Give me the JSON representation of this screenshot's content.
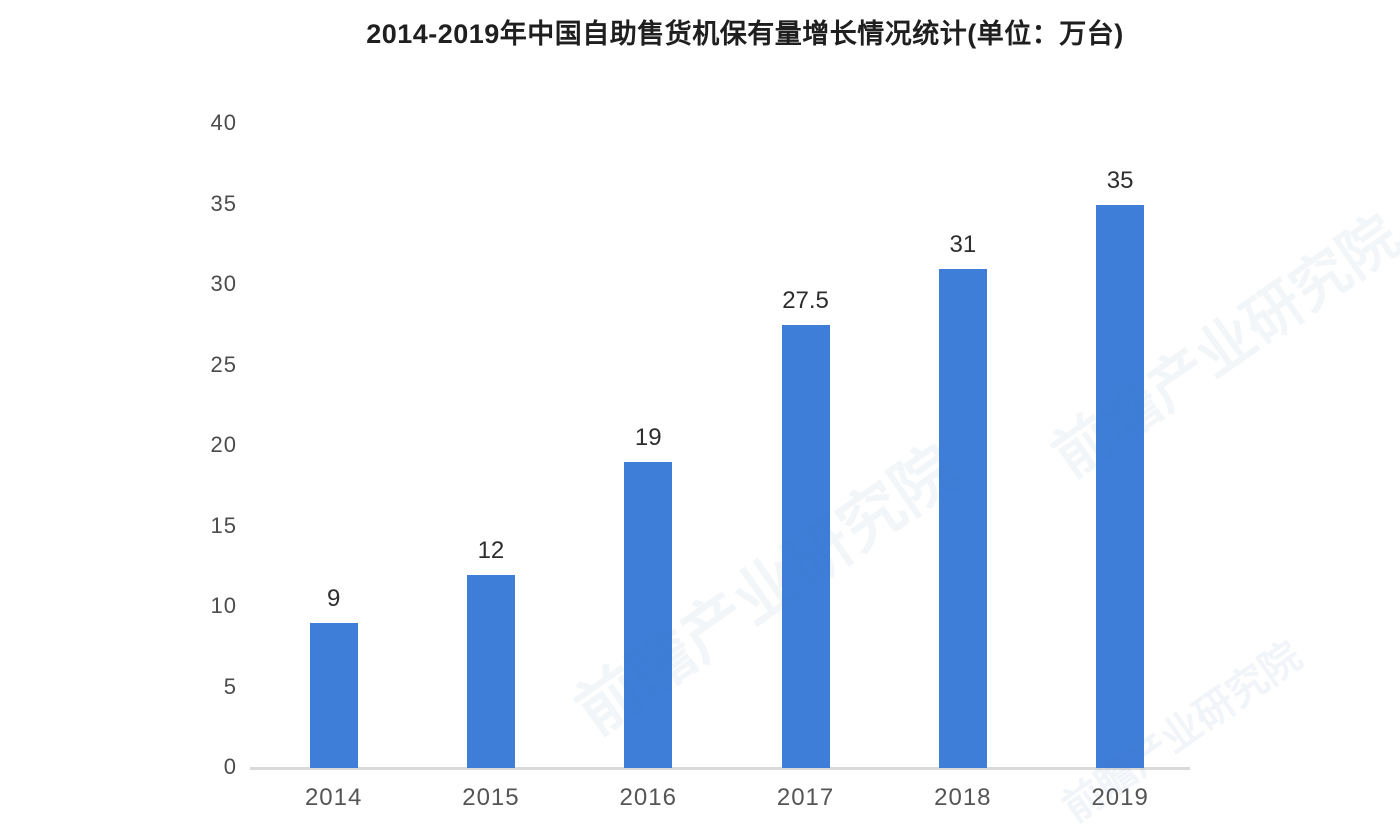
{
  "chart_data": {
    "type": "bar",
    "title": "2014-2019年中国自助售货机保有量增长情况统计(单位：万台)",
    "categories": [
      "2014",
      "2015",
      "2016",
      "2017",
      "2018",
      "2019"
    ],
    "values": [
      9,
      12,
      19,
      27.5,
      31,
      35
    ],
    "value_labels": [
      "9",
      "12",
      "19",
      "27.5",
      "31",
      "35"
    ],
    "xlabel": "",
    "ylabel": "",
    "ylim": [
      0,
      40
    ],
    "yticks": [
      0,
      5,
      10,
      15,
      20,
      25,
      30,
      35,
      40
    ],
    "grid": false,
    "legend": "none",
    "bar_color": "#3e7ed9",
    "value_label_color": "#2e2e2e",
    "ytick_color": "#4c4c4c",
    "xtick_color": "#555555",
    "axis_line_color": "#dadada",
    "title_color": "#1f1f1f",
    "background_color": "#ffffff"
  },
  "watermark": {
    "text": "前瞻产业研究院"
  }
}
